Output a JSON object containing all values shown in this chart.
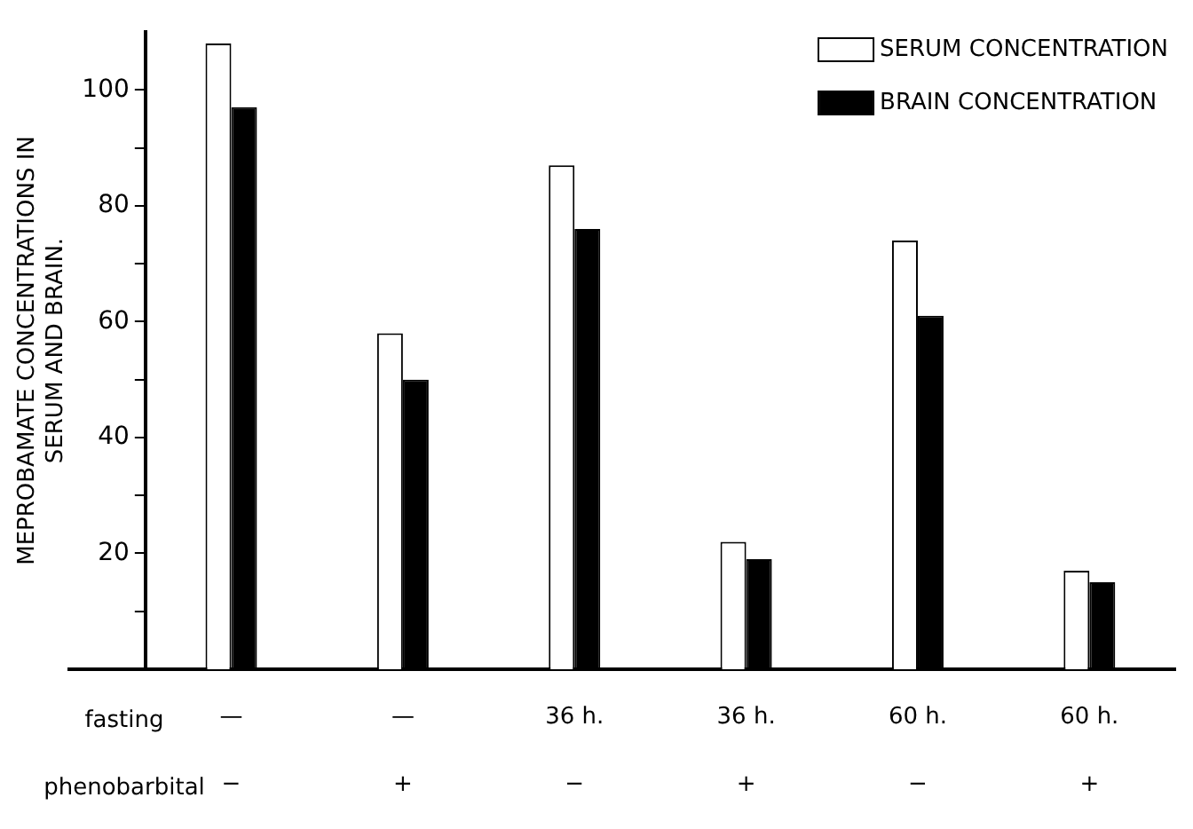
{
  "chart_data": {
    "type": "bar",
    "ylabel": "MEPROBAMATE CONCENTRATIONS IN\nSERUM AND BRAIN.",
    "categories": [
      "—\n−",
      "—\n+",
      "36 h.\n−",
      "36 h.\n+",
      "60 h.\n−",
      "60 h.\n+"
    ],
    "series": [
      {
        "name": "SERUM CONCENTRATION",
        "color": "#ffffff",
        "values": [
          108,
          58,
          87,
          22,
          74,
          17
        ]
      },
      {
        "name": "BRAIN CONCENTRATION",
        "color": "#000000",
        "values": [
          97,
          50,
          76,
          19,
          61,
          15
        ]
      }
    ],
    "ylim": [
      0,
      110
    ],
    "yticks": [
      {
        "value": 10,
        "label": null
      },
      20,
      {
        "value": 30,
        "label": null
      },
      40,
      {
        "value": 50,
        "label": null
      },
      60,
      {
        "value": 70,
        "label": null
      },
      80,
      {
        "value": 90,
        "label": null
      },
      100
    ],
    "annotations": [
      "fasting",
      "phenobarbital"
    ],
    "legend": "top right",
    "grid": false
  }
}
